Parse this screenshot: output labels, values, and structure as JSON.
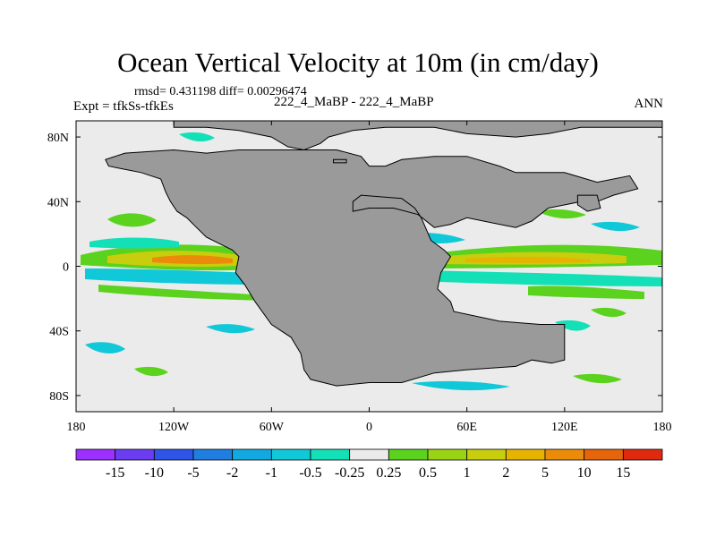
{
  "chart_data": {
    "type": "heatmap",
    "title": "Ocean Vertical Velocity at 10m (in cm/day)",
    "stats_line": "rmsd= 0.431198 diff= 0.00296474",
    "left_label": "Expt = tfkSs-tfkEs",
    "center_label": "222_4_MaBP - 222_4_MaBP",
    "right_label": "ANN",
    "x_axis": {
      "range": [
        -180,
        180
      ],
      "ticks": [
        {
          "value": -180,
          "label": "180"
        },
        {
          "value": -120,
          "label": "120W"
        },
        {
          "value": -60,
          "label": "60W"
        },
        {
          "value": 0,
          "label": "0"
        },
        {
          "value": 60,
          "label": "60E"
        },
        {
          "value": 120,
          "label": "120E"
        },
        {
          "value": 180,
          "label": "180"
        }
      ]
    },
    "y_axis": {
      "range": [
        -90,
        90
      ],
      "ticks": [
        {
          "value": 80,
          "label": "80N"
        },
        {
          "value": 40,
          "label": "40N"
        },
        {
          "value": 0,
          "label": "0"
        },
        {
          "value": -40,
          "label": "40S"
        },
        {
          "value": -80,
          "label": "80S"
        }
      ]
    },
    "colorbar": {
      "levels": [
        "-15",
        "-10",
        "-5",
        "-2",
        "-1",
        "-0.5",
        "-0.25",
        "0.25",
        "0.5",
        "1",
        "2",
        "5",
        "10",
        "15"
      ],
      "colors": [
        "#9b30ff",
        "#6a3df0",
        "#2f54e8",
        "#1f7ee0",
        "#12a9e0",
        "#10c8d8",
        "#14e0b8",
        "#ebebeb",
        "#5ad21e",
        "#9ad214",
        "#c8cd0e",
        "#e6b400",
        "#ea8c0a",
        "#e6640a",
        "#e02a10"
      ]
    },
    "land_color": "#9a9a9a",
    "neutral_color": "#ebebeb"
  }
}
